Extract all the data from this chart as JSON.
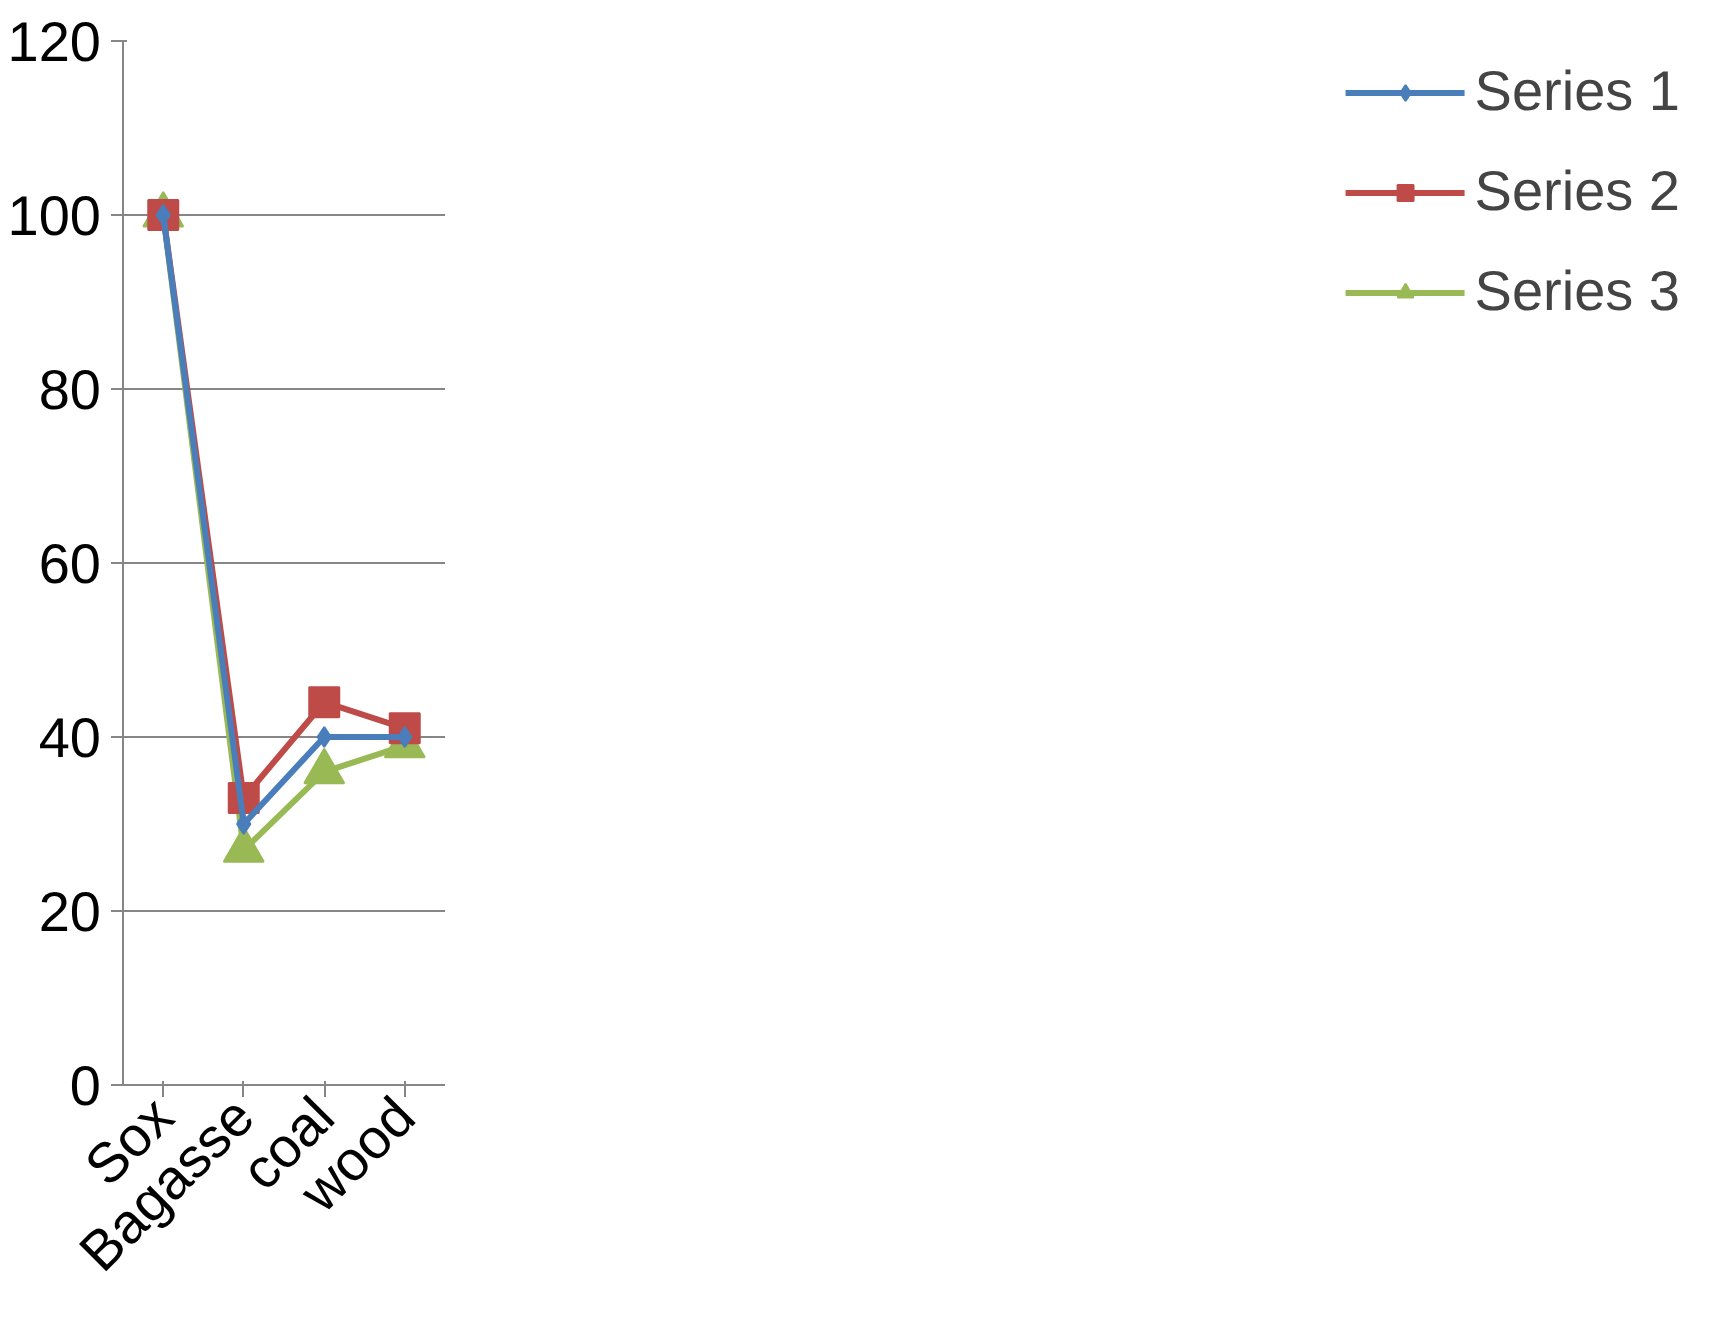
{
  "chart_data": {
    "type": "line",
    "categories": [
      "Sox",
      "Bagasse",
      "coal",
      "wood"
    ],
    "series": [
      {
        "name": "Series 1",
        "color": "#4a7ebb",
        "marker": "diamond",
        "values": [
          100,
          30,
          40,
          40
        ]
      },
      {
        "name": "Series 2",
        "color": "#be4b48",
        "marker": "square",
        "values": [
          100,
          33,
          44,
          41
        ]
      },
      {
        "name": "Series 3",
        "color": "#98b954",
        "marker": "triangle",
        "values": [
          100,
          27,
          36,
          39
        ]
      }
    ],
    "ylim": [
      0,
      120
    ],
    "yticks": [
      0,
      20,
      40,
      60,
      80,
      100,
      120
    ],
    "grid": "y",
    "legend": "right",
    "line_style": "solid"
  }
}
